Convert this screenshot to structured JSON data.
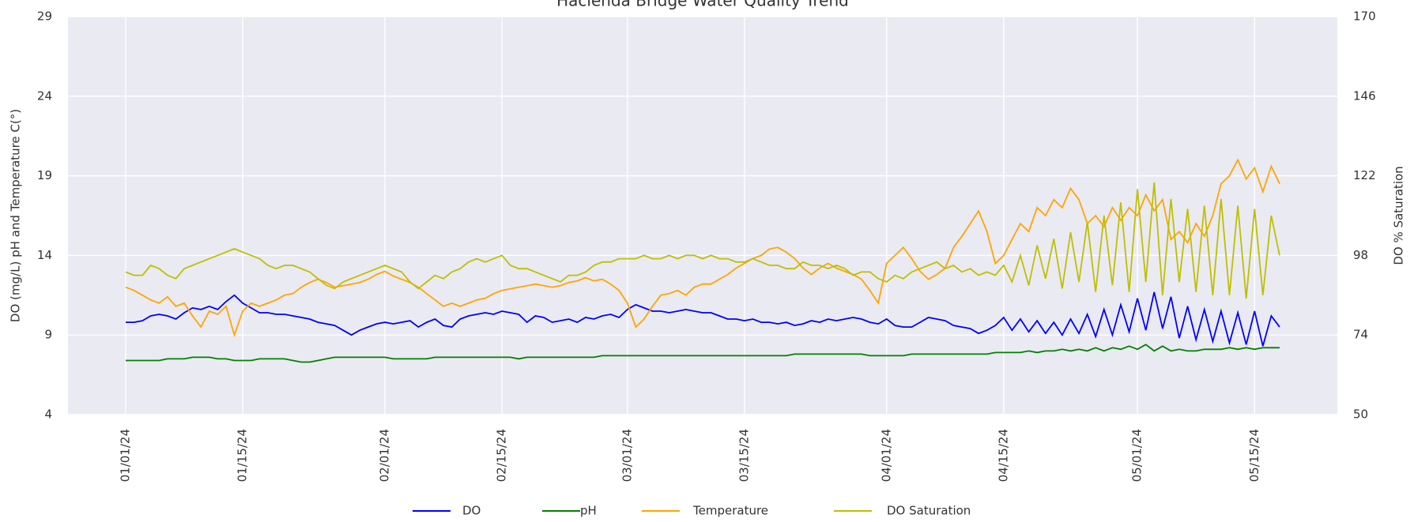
{
  "chart_data": {
    "type": "line",
    "title": "Hacienda Bridge Water Quality Trend",
    "ylabel": "DO (mg/L) pH and Temperature C(°)",
    "y2label": "DO % Saturation",
    "x": [
      "01/01/24",
      "01/02/24",
      "01/03/24",
      "01/04/24",
      "01/05/24",
      "01/06/24",
      "01/07/24",
      "01/08/24",
      "01/09/24",
      "01/10/24",
      "01/11/24",
      "01/12/24",
      "01/13/24",
      "01/14/24",
      "01/15/24",
      "01/16/24",
      "01/17/24",
      "01/18/24",
      "01/19/24",
      "01/20/24",
      "01/21/24",
      "01/22/24",
      "01/23/24",
      "01/24/24",
      "01/25/24",
      "01/26/24",
      "01/27/24",
      "01/28/24",
      "01/29/24",
      "01/30/24",
      "01/31/24",
      "02/01/24",
      "02/02/24",
      "02/03/24",
      "02/04/24",
      "02/05/24",
      "02/06/24",
      "02/07/24",
      "02/08/24",
      "02/09/24",
      "02/10/24",
      "02/11/24",
      "02/12/24",
      "02/13/24",
      "02/14/24",
      "02/15/24",
      "02/16/24",
      "02/17/24",
      "02/18/24",
      "02/19/24",
      "02/20/24",
      "02/21/24",
      "02/22/24",
      "02/23/24",
      "02/24/24",
      "02/25/24",
      "02/26/24",
      "02/27/24",
      "02/28/24",
      "02/29/24",
      "03/01/24",
      "03/02/24",
      "03/03/24",
      "03/04/24",
      "03/05/24",
      "03/06/24",
      "03/07/24",
      "03/08/24",
      "03/09/24",
      "03/10/24",
      "03/11/24",
      "03/12/24",
      "03/13/24",
      "03/14/24",
      "03/15/24",
      "03/16/24",
      "03/17/24",
      "03/18/24",
      "03/19/24",
      "03/20/24",
      "03/21/24",
      "03/22/24",
      "03/23/24",
      "03/24/24",
      "03/25/24",
      "03/26/24",
      "03/27/24",
      "03/28/24",
      "03/29/24",
      "03/30/24",
      "03/31/24",
      "04/01/24",
      "04/02/24",
      "04/03/24",
      "04/04/24",
      "04/05/24",
      "04/06/24",
      "04/07/24",
      "04/08/24",
      "04/09/24",
      "04/10/24",
      "04/11/24",
      "04/12/24",
      "04/13/24",
      "04/14/24",
      "04/15/24",
      "04/16/24",
      "04/17/24",
      "04/18/24",
      "04/19/24",
      "04/20/24",
      "04/21/24",
      "04/22/24",
      "04/23/24",
      "04/24/24",
      "04/25/24",
      "04/26/24",
      "04/27/24",
      "04/28/24",
      "04/29/24",
      "04/30/24",
      "05/01/24",
      "05/02/24",
      "05/03/24",
      "05/04/24",
      "05/05/24",
      "05/06/24",
      "05/07/24",
      "05/08/24",
      "05/09/24",
      "05/10/24",
      "05/11/24",
      "05/12/24",
      "05/13/24",
      "05/14/24",
      "05/15/24",
      "05/16/24",
      "05/17/24",
      "05/18/24"
    ],
    "series": [
      {
        "name": "DO",
        "color": "#0000ff",
        "values": [
          9.8,
          9.8,
          9.9,
          10.2,
          10.3,
          10.2,
          10.0,
          10.4,
          10.7,
          10.6,
          10.8,
          10.6,
          11.1,
          11.5,
          11.0,
          10.7,
          10.4,
          10.4,
          10.3,
          10.3,
          10.2,
          10.1,
          10.0,
          9.8,
          9.7,
          9.6,
          9.3,
          9.0,
          9.3,
          9.5,
          9.7,
          9.8,
          9.7,
          9.8,
          9.9,
          9.5,
          9.8,
          10.0,
          9.6,
          9.5,
          10.0,
          10.2,
          10.3,
          10.4,
          10.3,
          10.5,
          10.4,
          10.3,
          9.8,
          10.2,
          10.1,
          9.8,
          9.9,
          10.0,
          9.8,
          10.1,
          10.0,
          10.2,
          10.3,
          10.1,
          10.6,
          10.9,
          10.7,
          10.5,
          10.5,
          10.4,
          10.5,
          10.6,
          10.5,
          10.4,
          10.4,
          10.2,
          10.0,
          10.0,
          9.9,
          10.0,
          9.8,
          9.8,
          9.7,
          9.8,
          9.6,
          9.7,
          9.9,
          9.8,
          10.0,
          9.9,
          10.0,
          10.1,
          10.0,
          9.8,
          9.7,
          10.0,
          9.6,
          9.5,
          9.5,
          9.8,
          10.1,
          10.0,
          9.9,
          9.6,
          9.5,
          9.4,
          9.1,
          9.3,
          9.6,
          10.1,
          9.3,
          10.0,
          9.2,
          9.9,
          9.1,
          9.8,
          9.0,
          10.0,
          9.1,
          10.3,
          8.9,
          10.6,
          9.0,
          10.9,
          9.2,
          11.3,
          9.3,
          11.7,
          9.4,
          11.4,
          8.8,
          10.8,
          8.7,
          10.6,
          8.6,
          10.5,
          8.5,
          10.4,
          8.4,
          10.5,
          8.3,
          10.2,
          9.5
        ]
      },
      {
        "name": "pH",
        "color": "#008000",
        "values": [
          7.4,
          7.4,
          7.4,
          7.4,
          7.4,
          7.5,
          7.5,
          7.5,
          7.6,
          7.6,
          7.6,
          7.5,
          7.5,
          7.4,
          7.4,
          7.4,
          7.5,
          7.5,
          7.5,
          7.5,
          7.4,
          7.3,
          7.3,
          7.4,
          7.5,
          7.6,
          7.6,
          7.6,
          7.6,
          7.6,
          7.6,
          7.6,
          7.5,
          7.5,
          7.5,
          7.5,
          7.5,
          7.6,
          7.6,
          7.6,
          7.6,
          7.6,
          7.6,
          7.6,
          7.6,
          7.6,
          7.6,
          7.5,
          7.6,
          7.6,
          7.6,
          7.6,
          7.6,
          7.6,
          7.6,
          7.6,
          7.6,
          7.7,
          7.7,
          7.7,
          7.7,
          7.7,
          7.7,
          7.7,
          7.7,
          7.7,
          7.7,
          7.7,
          7.7,
          7.7,
          7.7,
          7.7,
          7.7,
          7.7,
          7.7,
          7.7,
          7.7,
          7.7,
          7.7,
          7.7,
          7.8,
          7.8,
          7.8,
          7.8,
          7.8,
          7.8,
          7.8,
          7.8,
          7.8,
          7.7,
          7.7,
          7.7,
          7.7,
          7.7,
          7.8,
          7.8,
          7.8,
          7.8,
          7.8,
          7.8,
          7.8,
          7.8,
          7.8,
          7.8,
          7.9,
          7.9,
          7.9,
          7.9,
          8.0,
          7.9,
          8.0,
          8.0,
          8.1,
          8.0,
          8.1,
          8.0,
          8.2,
          8.0,
          8.2,
          8.1,
          8.3,
          8.1,
          8.4,
          8.0,
          8.3,
          8.0,
          8.1,
          8.0,
          8.0,
          8.1,
          8.1,
          8.1,
          8.2,
          8.1,
          8.2,
          8.1,
          8.2,
          8.2,
          8.2
        ]
      },
      {
        "name": "Temperature",
        "color": "#ffa500",
        "values": [
          12.0,
          11.8,
          11.5,
          11.2,
          11.0,
          11.4,
          10.8,
          11.0,
          10.2,
          9.5,
          10.5,
          10.3,
          10.8,
          9.0,
          10.5,
          11.0,
          10.8,
          11.0,
          11.2,
          11.5,
          11.6,
          12.0,
          12.3,
          12.5,
          12.3,
          12.0,
          12.1,
          12.2,
          12.3,
          12.5,
          12.8,
          13.0,
          12.7,
          12.5,
          12.3,
          12.0,
          11.6,
          11.2,
          10.8,
          11.0,
          10.8,
          11.0,
          11.2,
          11.3,
          11.6,
          11.8,
          11.9,
          12.0,
          12.1,
          12.2,
          12.1,
          12.0,
          12.1,
          12.3,
          12.4,
          12.6,
          12.4,
          12.5,
          12.2,
          11.8,
          11.0,
          9.5,
          10.0,
          10.8,
          11.5,
          11.6,
          11.8,
          11.5,
          12.0,
          12.2,
          12.2,
          12.5,
          12.8,
          13.2,
          13.5,
          13.8,
          14.0,
          14.4,
          14.5,
          14.2,
          13.8,
          13.2,
          12.8,
          13.2,
          13.5,
          13.2,
          13.0,
          12.8,
          12.5,
          11.8,
          11.0,
          13.5,
          14.0,
          14.5,
          13.8,
          13.0,
          12.5,
          12.8,
          13.2,
          14.5,
          15.2,
          16.0,
          16.8,
          15.5,
          13.5,
          14.0,
          15.0,
          16.0,
          15.5,
          17.0,
          16.5,
          17.5,
          17.0,
          18.2,
          17.5,
          16.0,
          16.5,
          15.8,
          17.0,
          16.2,
          17.0,
          16.5,
          17.8,
          16.8,
          17.5,
          15.0,
          15.5,
          14.8,
          16.0,
          15.2,
          16.5,
          18.5,
          19.0,
          20.0,
          18.8,
          19.5,
          18.0,
          19.6,
          18.5
        ]
      },
      {
        "name": "DO Saturation",
        "color": "#bfbf00",
        "axis": "y2",
        "values": [
          93,
          92,
          92,
          95,
          94,
          92,
          91,
          94,
          95,
          96,
          97,
          98,
          99,
          100,
          99,
          98,
          97,
          95,
          94,
          95,
          95,
          94,
          93,
          91,
          89,
          88,
          90,
          91,
          92,
          93,
          94,
          95,
          94,
          93,
          90,
          88,
          90,
          92,
          91,
          93,
          94,
          96,
          97,
          96,
          97,
          98,
          95,
          94,
          94,
          93,
          92,
          91,
          90,
          92,
          92,
          93,
          95,
          96,
          96,
          97,
          97,
          97,
          98,
          97,
          97,
          98,
          97,
          98,
          98,
          97,
          98,
          97,
          97,
          96,
          96,
          97,
          96,
          95,
          95,
          94,
          94,
          96,
          95,
          95,
          94,
          95,
          94,
          92,
          93,
          93,
          91,
          90,
          92,
          91,
          93,
          94,
          95,
          96,
          94,
          95,
          93,
          94,
          92,
          93,
          92,
          95,
          90,
          98,
          89,
          101,
          91,
          103,
          88,
          105,
          90,
          108,
          87,
          110,
          89,
          114,
          87,
          118,
          90,
          120,
          86,
          115,
          90,
          112,
          87,
          113,
          86,
          115,
          86,
          113,
          85,
          112,
          86,
          110,
          98
        ]
      }
    ],
    "xticks": [
      "01/01/24",
      "01/15/24",
      "02/01/24",
      "02/15/24",
      "03/01/24",
      "03/15/24",
      "04/01/24",
      "04/15/24",
      "05/01/24",
      "05/15/24"
    ],
    "ylim": [
      4,
      29
    ],
    "yticks": [
      4,
      9,
      14,
      19,
      24,
      29
    ],
    "y2lim": [
      50,
      170
    ],
    "y2ticks": [
      50,
      74,
      98,
      122,
      146,
      170
    ],
    "grid": true,
    "legend": "bottom"
  }
}
